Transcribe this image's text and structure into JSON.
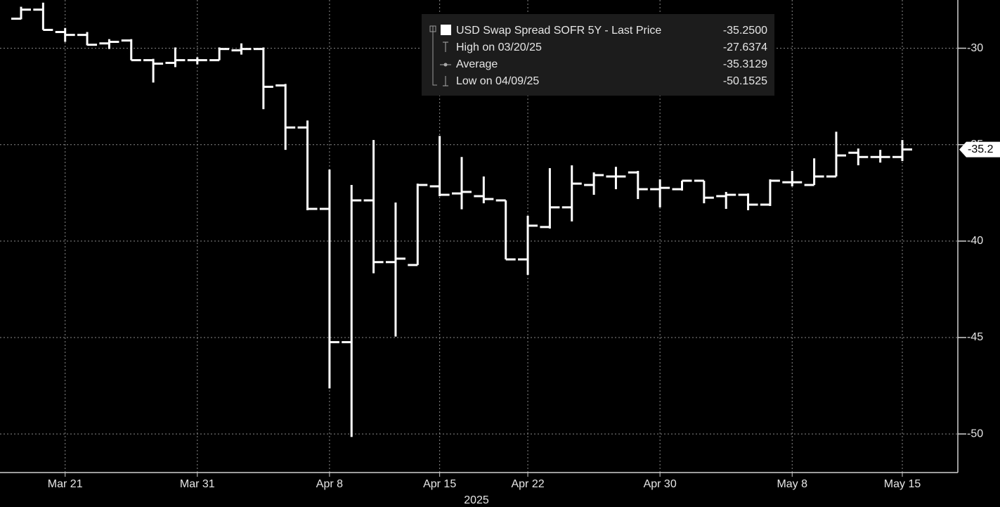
{
  "chart_data": {
    "type": "ohlc",
    "color": "#ffffff",
    "grid": true,
    "xlabel": "2025",
    "categories": [
      null,
      null,
      "Mar 21",
      null,
      null,
      null,
      null,
      null,
      "Mar 31",
      null,
      null,
      null,
      null,
      null,
      "Apr 8",
      null,
      null,
      null,
      null,
      "Apr 15",
      null,
      null,
      null,
      "Apr 22",
      null,
      null,
      null,
      null,
      null,
      "Apr 30",
      null,
      null,
      null,
      null,
      null,
      "May 8",
      null,
      null,
      null,
      null,
      "May 15"
    ],
    "open": [
      -28.47,
      -28.0,
      -29.16,
      -29.31,
      -29.75,
      -29.6,
      -30.62,
      -30.76,
      -30.62,
      -30.62,
      -30.11,
      -30.04,
      -31.93,
      -34.11,
      -38.33,
      -45.24,
      -37.89,
      -41.09,
      -41.24,
      -37.16,
      -37.53,
      -37.67,
      -37.89,
      -40.95,
      -39.27,
      -38.25,
      -37.09,
      -36.65,
      -36.44,
      -37.31,
      -37.31,
      -36.87,
      -37.67,
      -37.6,
      -38.11,
      -36.95,
      -37.09,
      -36.65,
      -35.42,
      -35.64,
      -35.64
    ],
    "high": [
      -27.85,
      -27.6374,
      -28.95,
      -29.16,
      -29.53,
      -29.53,
      -30.55,
      -29.96,
      -30.47,
      -29.96,
      -29.75,
      -29.96,
      -31.85,
      -33.75,
      -36.29,
      -37.09,
      -34.76,
      -38.0,
      -37.02,
      -34.55,
      -35.64,
      -36.65,
      -37.89,
      -38.69,
      -36.22,
      -36.07,
      -36.44,
      -36.15,
      -36.36,
      -36.8,
      -36.87,
      -36.87,
      -37.45,
      -37.53,
      -36.8,
      -36.36,
      -35.71,
      -34.33,
      -35.2,
      -35.27,
      -34.76
    ],
    "low": [
      -28.5,
      -29.05,
      -29.67,
      -29.85,
      -30.04,
      -30.62,
      -31.78,
      -30.98,
      -30.84,
      -30.62,
      -30.33,
      -33.16,
      -35.27,
      -38.4,
      -47.64,
      -50.1525,
      -41.67,
      -44.95,
      -41.24,
      -37.67,
      -38.35,
      -38.04,
      -40.95,
      -41.75,
      -39.35,
      -38.98,
      -37.6,
      -37.31,
      -37.82,
      -38.25,
      -37.38,
      -38.04,
      -38.33,
      -38.4,
      -38.18,
      -37.16,
      -37.09,
      -36.65,
      -36.07,
      -35.93,
      -35.85
    ],
    "close": [
      -28.0,
      -29.05,
      -29.31,
      -29.82,
      -29.67,
      -30.62,
      -30.8,
      -30.62,
      -30.62,
      -30.04,
      -30.04,
      -32.0,
      -34.11,
      -38.33,
      -45.24,
      -37.89,
      -41.09,
      -40.91,
      -37.09,
      -37.6,
      -37.45,
      -37.82,
      -40.95,
      -39.2,
      -38.25,
      -37.02,
      -36.58,
      -36.65,
      -37.31,
      -37.24,
      -36.87,
      -37.75,
      -37.6,
      -38.11,
      -36.87,
      -36.95,
      -36.65,
      -35.56,
      -35.64,
      -35.64,
      -35.25
    ],
    "ylim": [
      -52,
      -27.5
    ],
    "yticks": [
      -30,
      -35,
      -40,
      -45,
      -50
    ],
    "last_price_tag": "-35.2",
    "legend": [
      {
        "name": "USD Swap Spread SOFR 5Y - Last Price",
        "value": -35.25,
        "value_label": "-35.2500"
      },
      {
        "name": "High on 03/20/25",
        "value": -27.6374
      },
      {
        "name": "Average",
        "value": -35.3129
      },
      {
        "name": "Low on 04/09/25",
        "value": -50.1525
      }
    ]
  }
}
